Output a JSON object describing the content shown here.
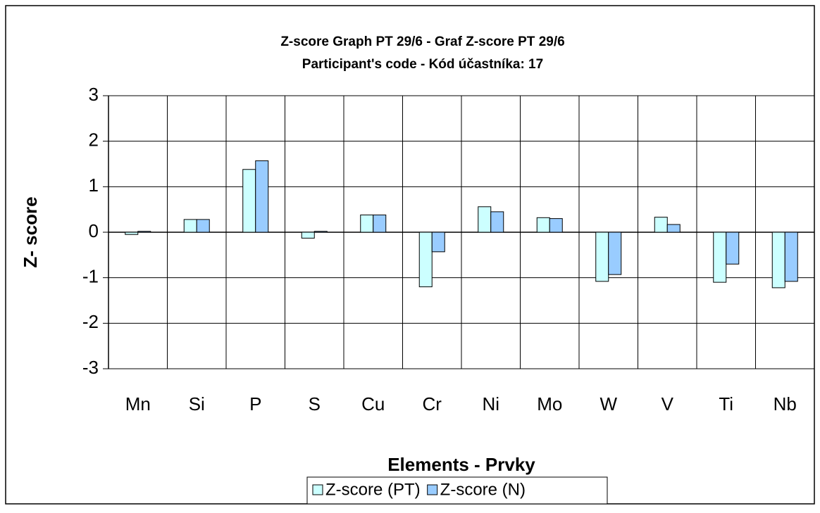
{
  "chart_data": {
    "type": "bar",
    "title": "Z-score Graph PT 29/6 - Graf Z-score PT 29/6",
    "subtitle": "Participant's code - Kód účastníka:  17",
    "x_label": "Elements - Prvky",
    "y_label": "Z- score",
    "categories": [
      "Mn",
      "Si",
      "P",
      "S",
      "Cu",
      "Cr",
      "Ni",
      "Mo",
      "W",
      "V",
      "Ti",
      "Nb"
    ],
    "series": [
      {
        "name": "Z-score (PT)",
        "color": "#ccffff",
        "values": [
          -0.05,
          0.28,
          1.38,
          -0.13,
          0.38,
          -1.2,
          0.56,
          0.32,
          -1.08,
          0.33,
          -1.1,
          -1.22
        ]
      },
      {
        "name": "Z-score (N)",
        "color": "#99ccff",
        "values": [
          0.02,
          0.28,
          1.57,
          0.02,
          0.38,
          -0.43,
          0.45,
          0.3,
          -0.93,
          0.17,
          -0.7,
          -1.08
        ]
      }
    ],
    "ylim": [
      -3,
      3
    ],
    "yticks": [
      -3,
      -2,
      -1,
      0,
      1,
      2,
      3
    ],
    "grid": true,
    "legend": "bottom"
  }
}
